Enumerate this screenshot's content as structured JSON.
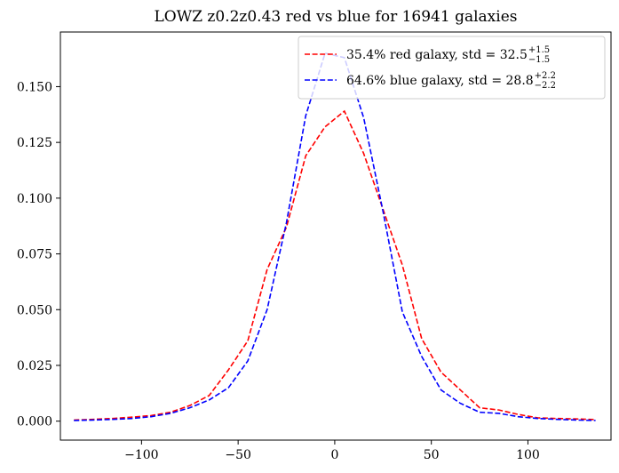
{
  "chart_data": {
    "type": "line",
    "title": "LOWZ z0.2z0.43 red vs blue for 16941 galaxies",
    "xlabel": "",
    "ylabel": "",
    "xlim": [
      -142,
      143
    ],
    "ylim": [
      -0.0085,
      0.1745
    ],
    "xticks": [
      -100,
      -50,
      0,
      50,
      100
    ],
    "xtick_labels": [
      "−100",
      "−50",
      "0",
      "50",
      "100"
    ],
    "yticks": [
      0.0,
      0.025,
      0.05,
      0.075,
      0.1,
      0.125,
      0.15
    ],
    "ytick_labels": [
      "0.000",
      "0.025",
      "0.050",
      "0.075",
      "0.100",
      "0.125",
      "0.150"
    ],
    "grid": false,
    "legend_position": "top-right",
    "series": [
      {
        "name": "red galaxy",
        "legend_prefix": "35.4% red galaxy, std = 32.5",
        "legend_sup": "+1.5",
        "legend_sub": "−1.5",
        "color": "#ff0000",
        "linestyle": "dashed",
        "x": [
          -135,
          -125,
          -115,
          -105,
          -95,
          -85,
          -75,
          -65,
          -55,
          -45,
          -35,
          -25,
          -15,
          -5,
          5,
          15,
          25,
          35,
          45,
          55,
          65,
          75,
          85,
          95,
          105,
          115,
          125,
          135
        ],
        "y": [
          0.0005,
          0.0008,
          0.0012,
          0.0018,
          0.0025,
          0.004,
          0.007,
          0.0115,
          0.023,
          0.036,
          0.068,
          0.087,
          0.119,
          0.132,
          0.139,
          0.12,
          0.095,
          0.07,
          0.037,
          0.022,
          0.014,
          0.006,
          0.005,
          0.003,
          0.0015,
          0.0012,
          0.001,
          0.0007
        ]
      },
      {
        "name": "blue galaxy",
        "legend_prefix": "64.6% blue galaxy, std = 28.8",
        "legend_sup": "+2.2",
        "legend_sub": "−2.2",
        "color": "#0000ff",
        "linestyle": "dashed",
        "x": [
          -135,
          -125,
          -115,
          -105,
          -95,
          -85,
          -75,
          -65,
          -55,
          -45,
          -35,
          -25,
          -15,
          -5,
          5,
          15,
          25,
          35,
          45,
          55,
          65,
          75,
          85,
          95,
          105,
          115,
          125,
          135
        ],
        "y": [
          0.0003,
          0.0005,
          0.0008,
          0.0012,
          0.002,
          0.0035,
          0.006,
          0.0095,
          0.015,
          0.027,
          0.05,
          0.089,
          0.137,
          0.165,
          0.163,
          0.136,
          0.094,
          0.049,
          0.029,
          0.014,
          0.008,
          0.004,
          0.0035,
          0.002,
          0.0012,
          0.0008,
          0.0005,
          0.0003
        ]
      }
    ]
  }
}
